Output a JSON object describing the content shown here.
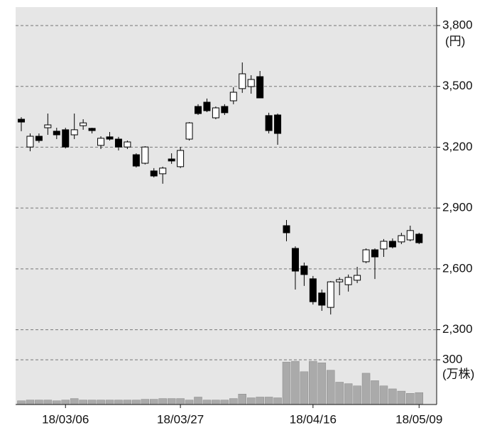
{
  "chart_data": {
    "type": "candlestick",
    "categories": [
      null,
      null,
      null,
      null,
      null,
      "18/03/06",
      null,
      null,
      null,
      null,
      null,
      null,
      null,
      null,
      null,
      null,
      null,
      null,
      "18/03/27",
      null,
      null,
      null,
      null,
      null,
      null,
      null,
      null,
      null,
      null,
      null,
      null,
      null,
      null,
      "18/04/16",
      null,
      null,
      null,
      null,
      null,
      null,
      null,
      null,
      null,
      null,
      null,
      "18/05/09"
    ],
    "open": [
      3338,
      3201,
      3254,
      3296,
      3279,
      3286,
      3261,
      3306,
      3293,
      3209,
      3251,
      3240,
      3201,
      3163,
      3121,
      3083,
      3069,
      3142,
      3104,
      3240,
      3401,
      3422,
      3345,
      3401,
      3429,
      3489,
      3499,
      3548,
      3356,
      3359,
      2813,
      2701,
      2614,
      2551,
      2481,
      2410,
      2536,
      2522,
      2544,
      2635,
      2694,
      2698,
      2736,
      2733,
      2743,
      2771
    ],
    "high": [
      3348,
      3268,
      3268,
      3366,
      3296,
      3296,
      3366,
      3338,
      3296,
      3254,
      3275,
      3251,
      3233,
      3170,
      3205,
      3097,
      3104,
      3170,
      3201,
      3324,
      3412,
      3440,
      3401,
      3412,
      3496,
      3618,
      3555,
      3576,
      3370,
      3366,
      2841,
      2711,
      2631,
      2565,
      2498,
      2540,
      2558,
      2572,
      2610,
      2701,
      2701,
      2747,
      2750,
      2778,
      2813,
      2778
    ],
    "low": [
      3279,
      3180,
      3222,
      3261,
      3240,
      3194,
      3240,
      3286,
      3268,
      3191,
      3233,
      3184,
      3191,
      3100,
      3115,
      3051,
      3020,
      3118,
      3097,
      3233,
      3359,
      3373,
      3338,
      3359,
      3412,
      3468,
      3464,
      3443,
      3268,
      3212,
      2736,
      2498,
      2516,
      2424,
      2393,
      2375,
      2470,
      2488,
      2530,
      2628,
      2550,
      2659,
      2701,
      2722,
      2736,
      2722
    ],
    "close": [
      3324,
      3254,
      3233,
      3310,
      3261,
      3201,
      3286,
      3320,
      3282,
      3244,
      3240,
      3201,
      3226,
      3107,
      3201,
      3058,
      3097,
      3132,
      3184,
      3320,
      3366,
      3380,
      3394,
      3370,
      3471,
      3562,
      3534,
      3443,
      3282,
      3268,
      2778,
      2589,
      2572,
      2438,
      2421,
      2536,
      2547,
      2558,
      2568,
      2694,
      2659,
      2736,
      2708,
      2764,
      2789,
      2729
    ],
    "ylim": [
      1931,
      3891
    ],
    "yticks": [
      {
        "value": 2300,
        "label": "2,300"
      },
      {
        "value": 2600,
        "label": "2,600"
      },
      {
        "value": 2900,
        "label": "2,900"
      },
      {
        "value": 3200,
        "label": "3,200"
      },
      {
        "value": 3500,
        "label": "3,500"
      },
      {
        "value": 3800,
        "label": "3,800"
      }
    ],
    "y_unit": "(円)",
    "volume": {
      "values": [
        25,
        30,
        30,
        30,
        25,
        30,
        40,
        30,
        30,
        30,
        30,
        30,
        30,
        30,
        35,
        35,
        40,
        40,
        40,
        30,
        50,
        30,
        30,
        30,
        40,
        70,
        45,
        50,
        50,
        45,
        285,
        290,
        220,
        290,
        280,
        230,
        150,
        140,
        125,
        210,
        160,
        125,
        105,
        90,
        75,
        80
      ],
      "ylim": [
        0,
        340
      ],
      "yticks": [
        300
      ],
      "unit": "(万株)",
      "color": "#aaaaaa"
    },
    "up_color": "#ffffff",
    "down_color": "#000000",
    "background": "#e6e6e6",
    "grid": true
  }
}
